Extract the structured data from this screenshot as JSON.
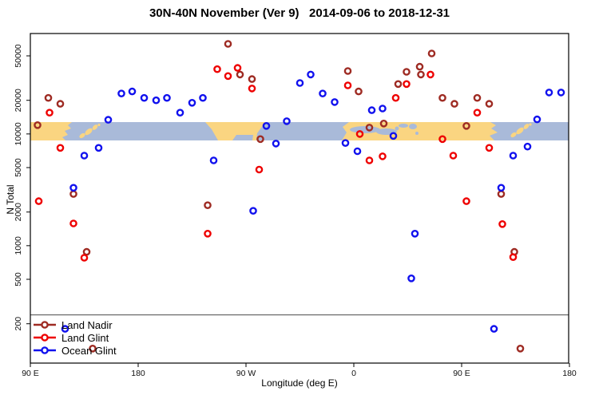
{
  "title": "30N-40N November (Ver 9)   2014-09-06 to 2018-12-31",
  "chart_data": {
    "type": "scatter",
    "title": "30N-40N November (Ver 9)   2014-09-06 to 2018-12-31",
    "xlabel": "Longitude (deg E)",
    "ylabel": "N Total",
    "x_axis": {
      "unit": "deg E (wrapping eastward from 90E)",
      "range": [
        90,
        540
      ],
      "ticks": [
        {
          "lon": 90,
          "label": "90 E"
        },
        {
          "lon": 180,
          "label": "180"
        },
        {
          "lon": 270,
          "label": "90 W"
        },
        {
          "lon": 360,
          "label": "0"
        },
        {
          "lon": 450,
          "label": "90 E"
        },
        {
          "lon": 540,
          "label": "180"
        }
      ]
    },
    "y_axis": {
      "scale": "log",
      "range": [
        150,
        70000
      ],
      "ticks": [
        200,
        500,
        1000,
        2000,
        5000,
        10000,
        20000,
        50000
      ]
    },
    "grid": false,
    "reference_line_value": 240,
    "map_band": {
      "description": "world-map strip of the 30N-40N latitude band drawn across the plot near N=10000",
      "value_min": 8800,
      "value_max": 12800,
      "land_color": "#FAD581",
      "ocean_color": "#A9BAD9"
    },
    "legend": {
      "position": "bottom-left",
      "entries": [
        "Land Nadir",
        "Land Glint",
        "Ocean Glint"
      ]
    },
    "series": [
      {
        "name": "Land Nadir",
        "color": "#9E2B23",
        "points": [
          [
            96,
            12000
          ],
          [
            105,
            21000
          ],
          [
            115,
            18600
          ],
          [
            126,
            2900
          ],
          [
            137,
            880
          ],
          [
            142,
            120
          ],
          [
            238,
            2300
          ],
          [
            255,
            64000
          ],
          [
            265,
            34000
          ],
          [
            275,
            31000
          ],
          [
            282,
            9000
          ],
          [
            355,
            36600
          ],
          [
            364,
            24000
          ],
          [
            373,
            11400
          ],
          [
            385,
            12400
          ],
          [
            397,
            28000
          ],
          [
            404,
            36000
          ],
          [
            415,
            40000
          ],
          [
            416,
            34000
          ],
          [
            425,
            52500
          ],
          [
            434,
            21000
          ],
          [
            444,
            18600
          ],
          [
            454,
            11800
          ],
          [
            463,
            21000
          ],
          [
            473,
            18600
          ],
          [
            483,
            2900
          ],
          [
            494,
            880
          ],
          [
            499,
            120
          ]
        ]
      },
      {
        "name": "Land Glint",
        "color": "#EE0000",
        "points": [
          [
            97,
            2500
          ],
          [
            106,
            15500
          ],
          [
            115,
            7500
          ],
          [
            126,
            1580
          ],
          [
            135,
            780
          ],
          [
            238,
            1280
          ],
          [
            246,
            38000
          ],
          [
            255,
            33000
          ],
          [
            263,
            39000
          ],
          [
            275,
            25500
          ],
          [
            281,
            4800
          ],
          [
            355,
            27200
          ],
          [
            365,
            10000
          ],
          [
            373,
            5800
          ],
          [
            384,
            6300
          ],
          [
            395,
            21000
          ],
          [
            404,
            28000
          ],
          [
            424,
            34000
          ],
          [
            434,
            9000
          ],
          [
            443,
            6400
          ],
          [
            454,
            2500
          ],
          [
            463,
            15500
          ],
          [
            473,
            7500
          ],
          [
            484,
            1560
          ],
          [
            493,
            790
          ]
        ]
      },
      {
        "name": "Ocean Glint",
        "color": "#1111EE",
        "points": [
          [
            119,
            180
          ],
          [
            126,
            3300
          ],
          [
            135,
            6400
          ],
          [
            147,
            7500
          ],
          [
            155,
            13400
          ],
          [
            166,
            23000
          ],
          [
            175,
            24000
          ],
          [
            185,
            21000
          ],
          [
            195,
            20000
          ],
          [
            204,
            21000
          ],
          [
            215,
            15500
          ],
          [
            225,
            19000
          ],
          [
            234,
            21000
          ],
          [
            243,
            5800
          ],
          [
            276,
            2050
          ],
          [
            287,
            11800
          ],
          [
            295,
            8200
          ],
          [
            304,
            13000
          ],
          [
            315,
            28600
          ],
          [
            324,
            34000
          ],
          [
            334,
            23000
          ],
          [
            344,
            19300
          ],
          [
            353,
            8300
          ],
          [
            363,
            7000
          ],
          [
            375,
            16300
          ],
          [
            384,
            16900
          ],
          [
            393,
            9600
          ],
          [
            408,
            510
          ],
          [
            411,
            1280
          ],
          [
            477,
            180
          ],
          [
            483,
            3300
          ],
          [
            493,
            6400
          ],
          [
            505,
            7700
          ],
          [
            513,
            13500
          ],
          [
            523,
            23500
          ],
          [
            533,
            23500
          ]
        ]
      }
    ]
  }
}
